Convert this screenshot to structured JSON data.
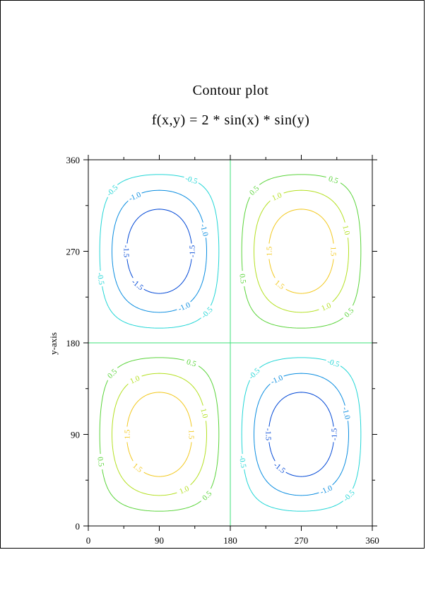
{
  "chart_data": {
    "type": "contour",
    "title": "Contour plot",
    "subtitle": "f(x,y) = 2 * sin(x) * sin(y)",
    "xlabel": "",
    "ylabel": "y-axis",
    "xlim": [
      0,
      360
    ],
    "ylim": [
      0,
      360
    ],
    "xticks": [
      "0",
      "90",
      "180",
      "270",
      "360"
    ],
    "yticks": [
      "0",
      "90",
      "180",
      "270",
      "360"
    ],
    "x_tick_values": [
      0,
      90,
      180,
      270,
      360
    ],
    "y_tick_values": [
      0,
      90,
      180,
      270,
      360
    ],
    "x_minor_tick_values": [
      0,
      45,
      90,
      135,
      180,
      225,
      270,
      315,
      360
    ],
    "y_minor_tick_values": [
      0,
      45,
      90,
      135,
      180,
      225,
      270,
      315,
      360
    ],
    "function": "2*sin(x)*sin(y)",
    "levels": [
      {
        "value": -1.5,
        "label": "-1.5",
        "color": "#0047d6"
      },
      {
        "value": -1.0,
        "label": "-1.0",
        "color": "#0a8de0"
      },
      {
        "value": -0.5,
        "label": "-0.5",
        "color": "#22d6d6"
      },
      {
        "value": 0.0,
        "label": "",
        "color": "#3ce07a"
      },
      {
        "value": 0.5,
        "label": "0.5",
        "color": "#5ad43a"
      },
      {
        "value": 1.0,
        "label": "1.0",
        "color": "#b4e022"
      },
      {
        "value": 1.5,
        "label": "1.5",
        "color": "#f2c81e"
      }
    ],
    "grid": false
  }
}
